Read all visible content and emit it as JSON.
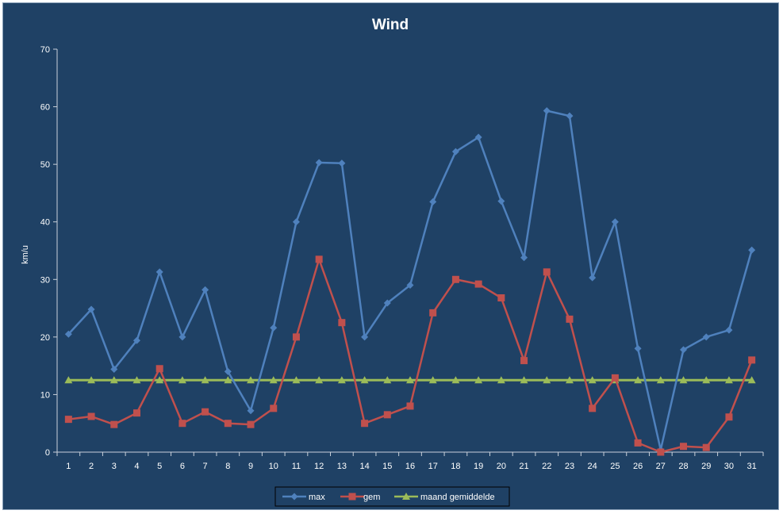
{
  "chart_data": {
    "type": "line",
    "title": "Wind",
    "xlabel": "",
    "ylabel": "km/u",
    "ylim": [
      0,
      70
    ],
    "yticks": [
      0,
      10,
      20,
      30,
      40,
      50,
      60,
      70
    ],
    "categories": [
      "1",
      "2",
      "3",
      "4",
      "5",
      "6",
      "7",
      "8",
      "9",
      "10",
      "11",
      "12",
      "13",
      "14",
      "15",
      "16",
      "17",
      "18",
      "19",
      "20",
      "21",
      "22",
      "23",
      "24",
      "25",
      "26",
      "27",
      "28",
      "29",
      "30",
      "31"
    ],
    "grid": false,
    "legend_position": "bottom",
    "series": [
      {
        "name": "max",
        "color": "#4f81bd",
        "marker": "diamond",
        "values": [
          20.5,
          24.8,
          14.4,
          19.4,
          31.3,
          20.0,
          28.2,
          14.0,
          7.2,
          21.6,
          40.0,
          50.3,
          50.2,
          20.0,
          25.9,
          29.0,
          43.5,
          52.2,
          54.7,
          43.6,
          33.8,
          59.3,
          58.4,
          30.3,
          40.0,
          18.0,
          0.4,
          17.8,
          20.0,
          21.2,
          35.1
        ]
      },
      {
        "name": "gem",
        "color": "#c0504d",
        "marker": "square",
        "values": [
          5.7,
          6.2,
          4.8,
          6.8,
          14.5,
          5.0,
          7.0,
          5.0,
          4.8,
          7.6,
          20.0,
          33.5,
          22.5,
          5.0,
          6.5,
          8.0,
          24.2,
          30.0,
          29.2,
          26.8,
          15.9,
          31.3,
          23.1,
          7.6,
          12.9,
          1.6,
          0.0,
          1.0,
          0.8,
          6.1,
          16.0
        ]
      },
      {
        "name": "maand gemiddelde",
        "color": "#9bbb59",
        "marker": "triangle",
        "values": [
          12.5,
          12.5,
          12.5,
          12.5,
          12.5,
          12.5,
          12.5,
          12.5,
          12.5,
          12.5,
          12.5,
          12.5,
          12.5,
          12.5,
          12.5,
          12.5,
          12.5,
          12.5,
          12.5,
          12.5,
          12.5,
          12.5,
          12.5,
          12.5,
          12.5,
          12.5,
          12.5,
          12.5,
          12.5,
          12.5,
          12.5
        ]
      }
    ]
  }
}
